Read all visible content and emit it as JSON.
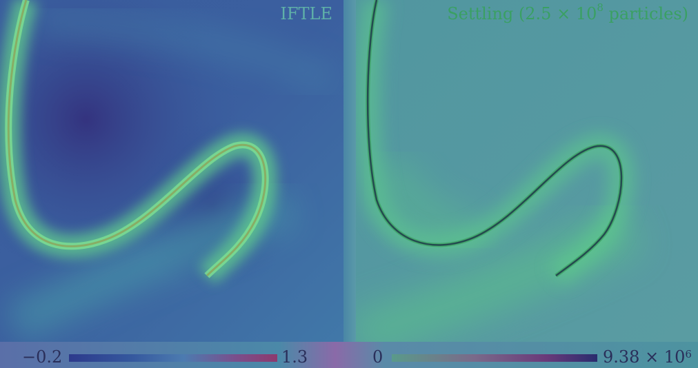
{
  "panels": {
    "left": {
      "title": "IFTLE"
    },
    "right": {
      "title_prefix": "Settling (2.5 × 10",
      "title_exponent": "8",
      "title_suffix": " particles)"
    }
  },
  "colorbars": {
    "left": {
      "min_label": "−0.2",
      "max_label": "1.3"
    },
    "right": {
      "min_label": "0",
      "max_label_base": "9.38 × 10",
      "max_label_exponent": "6"
    }
  },
  "colors": {
    "field_dark": "#2f3f8a",
    "field_mid": "#3f73a6",
    "ridge_glow": "#5fd08a",
    "ridge_core_left": "#8aa860",
    "ridge_core_right": "#1e3a4a",
    "right_background": "#5398a0"
  }
}
